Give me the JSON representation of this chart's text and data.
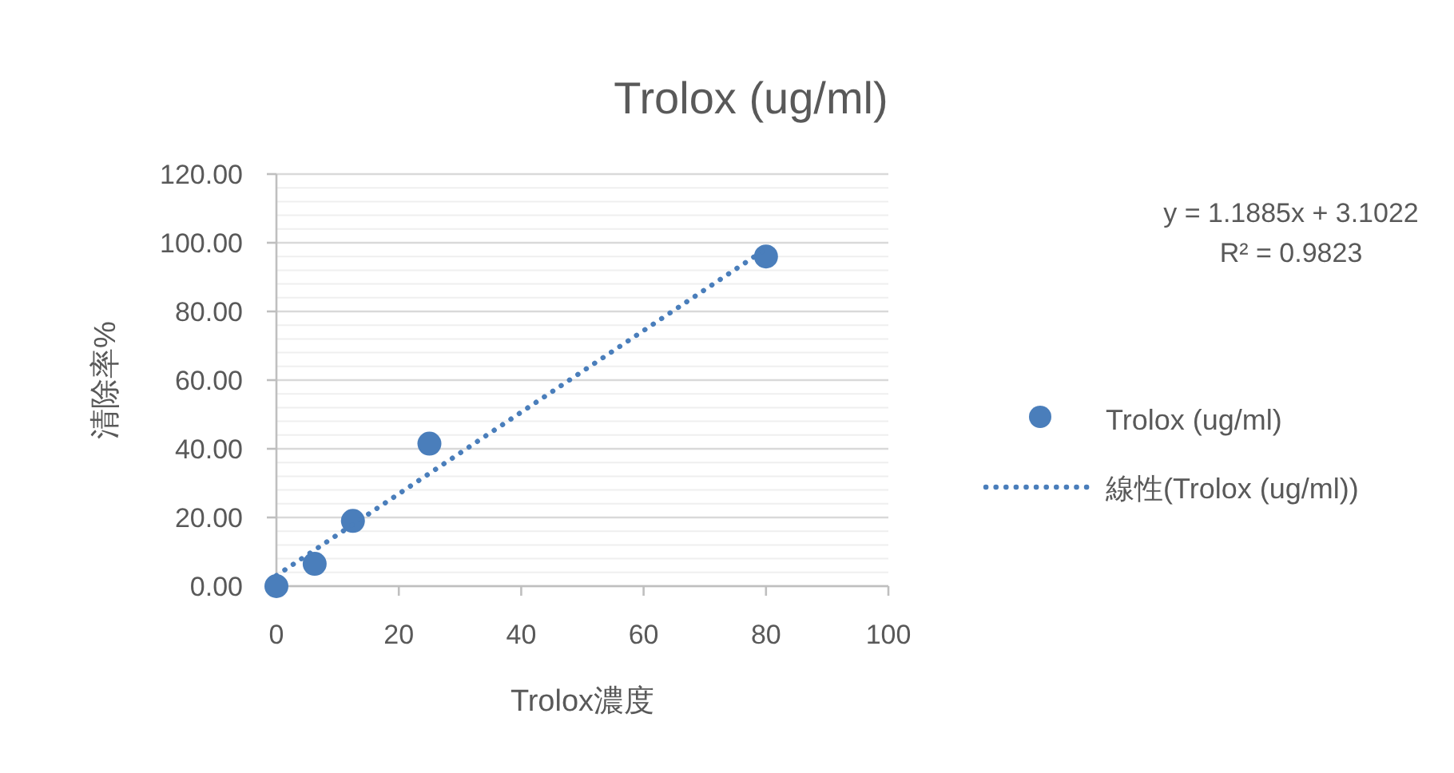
{
  "chart_data": {
    "type": "scatter",
    "title": "Trolox (ug/ml)",
    "xlabel": "Trolox濃度",
    "ylabel": "清除率%",
    "xlim": [
      0,
      100
    ],
    "xticks": [
      0,
      20,
      40,
      60,
      80,
      100
    ],
    "ylim": [
      0,
      120
    ],
    "yticks": [
      {
        "value": 0,
        "label": "0.00"
      },
      {
        "value": 20,
        "label": "20.00"
      },
      {
        "value": 40,
        "label": "40.00"
      },
      {
        "value": 60,
        "label": "60.00"
      },
      {
        "value": 80,
        "label": "80.00"
      },
      {
        "value": 100,
        "label": "100.00"
      },
      {
        "value": 120,
        "label": "120.00"
      }
    ],
    "grid": "y",
    "legend": "right",
    "annotations": [
      "y = 1.1885x + 3.1022",
      "R² = 0.9823"
    ],
    "series": [
      {
        "name": "Trolox (ug/ml)",
        "marker": "circle",
        "color": "#4a7ebb",
        "x": [
          0,
          6.25,
          12.5,
          25,
          80
        ],
        "values": [
          0,
          6.5,
          19,
          41.5,
          96
        ]
      },
      {
        "name": "線性(Trolox (ug/ml))",
        "type": "line",
        "line_style": "dotted",
        "marker": "none",
        "color": "#4a7ebb",
        "x": [
          0,
          80
        ],
        "values": [
          3.1,
          98.2
        ]
      }
    ]
  }
}
